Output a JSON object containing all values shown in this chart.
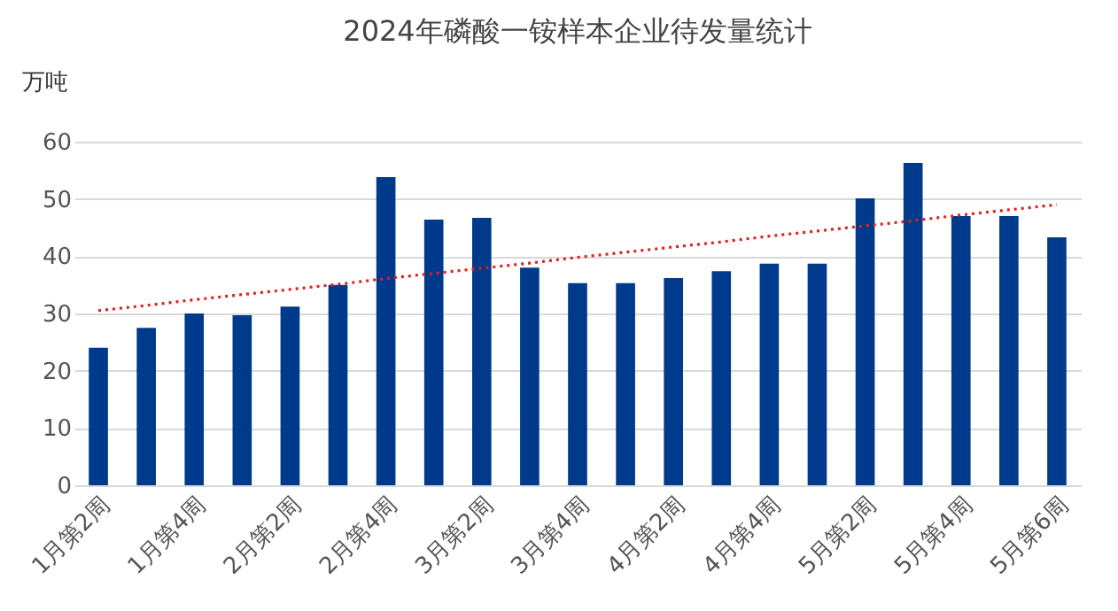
{
  "chart_data": {
    "type": "bar",
    "title": "2024年磷酸一铵样本企业待发量统计",
    "ylabel": "万吨",
    "categories": [
      "1月第2周",
      null,
      "1月第4周",
      null,
      "2月第2周",
      null,
      "2月第4周",
      null,
      "3月第2周",
      null,
      "3月第4周",
      null,
      "4月第2周",
      null,
      "4月第4周",
      null,
      "5月第2周",
      null,
      "5月第4周",
      null,
      "5月第6周"
    ],
    "series": [
      {
        "color": "#003a8c",
        "values": [
          24,
          27.5,
          30,
          29.7,
          31.2,
          35,
          53.8,
          46.4,
          46.7,
          38,
          35.3,
          35.3,
          36.2,
          37.4,
          38.7,
          38.7,
          50.1,
          56.3,
          47,
          47,
          43.3
        ]
      },
      {
        "type": "line",
        "color": "#e02020",
        "line_style": "dotted",
        "values": [
          30.5,
          31.4,
          32.4,
          33.3,
          34.2,
          35.1,
          36.1,
          37,
          37.9,
          38.8,
          39.8,
          40.7,
          41.6,
          42.5,
          43.5,
          44.4,
          45.3,
          46.2,
          47.2,
          48.1,
          49
        ]
      }
    ],
    "ylim": [
      0,
      60
    ],
    "yticks": [
      0,
      10,
      20,
      30,
      40,
      50,
      60
    ],
    "grid": "y"
  }
}
